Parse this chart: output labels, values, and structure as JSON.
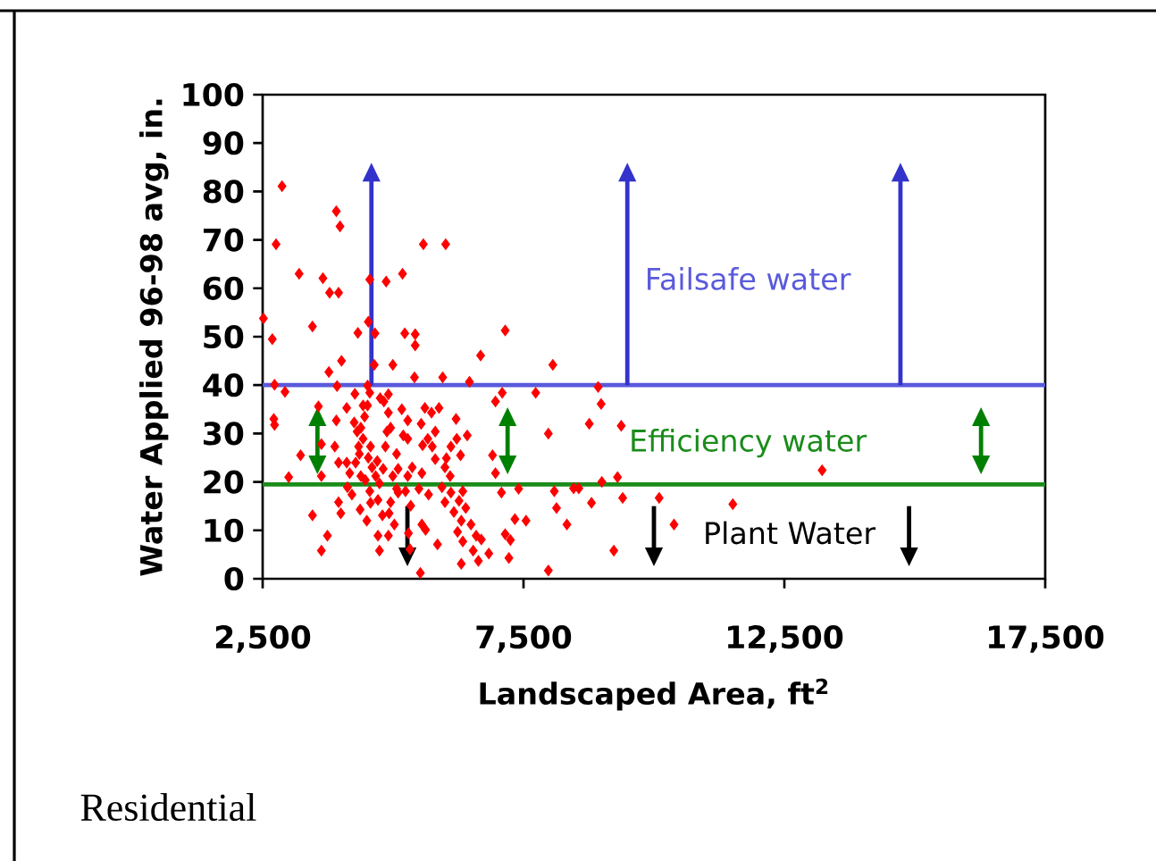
{
  "chart_data": {
    "type": "scatter",
    "xlabel": "Landscaped Area, ft$^{2}$",
    "ylabel": "Water Applied 96-98 avg, in.",
    "xlim": [
      2500,
      17500
    ],
    "ylim": [
      0,
      100
    ],
    "xticks": [
      {
        "value": 2500,
        "label": "2,500"
      },
      {
        "value": 7500,
        "label": "7,500"
      },
      {
        "value": 12500,
        "label": "12,500"
      },
      {
        "value": 17500,
        "label": "17,500"
      }
    ],
    "yticks": [
      0,
      10,
      20,
      30,
      40,
      50,
      60,
      70,
      80,
      90,
      100
    ],
    "marker": "diamond",
    "ref_lines": [
      {
        "axis": "y",
        "value": 40,
        "label": "Failsafe water",
        "color": "#5a5adc"
      },
      {
        "axis": "y",
        "value": 19.5,
        "label": "Efficiency water",
        "color": "#1a8c1a"
      }
    ],
    "annotations": [
      "Plant Water",
      "Residential"
    ],
    "series": [
      {
        "color": "#ff0000",
        "x": [
          2871,
          2757,
          2514,
          2685,
          2728,
          2928,
          2714,
          2728,
          2999,
          3199,
          3455,
          3655,
          3783,
          3955,
          3912,
          3983,
          3769,
          4012,
          3926,
          3569,
          3626,
          3227,
          3626,
          3455,
          3741,
          3626,
          3955,
          3912,
          3955,
          3998,
          4111,
          4254,
          4311,
          4339,
          4282,
          4382,
          4169,
          4211,
          4368,
          4325,
          4268,
          4425,
          4511,
          4525,
          4553,
          4653,
          4639,
          4867,
          4995,
          5181,
          5224,
          5424,
          5424,
          5410,
          5580,
          6008,
          5951,
          6464,
          6678,
          7149,
          7092,
          7734,
          8062,
          7976,
          8988,
          8931,
          9373,
          8760,
          9302,
          9002,
          9401,
          10100,
          10385,
          11512,
          13224,
          9231,
          8803,
          8460,
          8560,
          8090,
          8133,
          8332,
          7976,
          7548,
          7406,
          7335,
          7149,
          7249,
          7220,
          7077,
          6906,
          6963,
          6963,
          6835,
          6635,
          6535,
          6592,
          6692,
          6493,
          6393,
          6336,
          6293,
          6421,
          6207,
          6221,
          6108,
          6022,
          5994,
          6094,
          5937,
          6108,
          6264,
          6165,
          6307,
          6236,
          6336,
          6307,
          5994,
          5851,
          5808,
          5880,
          5737,
          5609,
          5538,
          5666,
          5566,
          5751,
          5808,
          5552,
          5495,
          5680,
          5552,
          5623,
          5523,
          5324,
          5295,
          5338,
          5238,
          5281,
          5367,
          5281,
          5195,
          5281,
          5167,
          5067,
          5096,
          4995,
          4953,
          4924,
          5024,
          4910,
          4739,
          4710,
          4796,
          4710,
          4739,
          4810,
          4696,
          4853,
          4882,
          4953,
          4910,
          4824,
          4910,
          4753,
          4553,
          4511,
          4454,
          4568,
          4525,
          4596,
          4667,
          4553,
          4382,
          4425,
          4354,
          4568,
          4496,
          5067,
          5096,
          3883,
          4125,
          4111,
          4468
        ],
        "values": [
          81.1,
          69.1,
          53.8,
          49.5,
          40.1,
          38.6,
          33.0,
          31.8,
          21.0,
          63.0,
          52.1,
          62.1,
          59.1,
          59.1,
          75.9,
          72.8,
          42.7,
          45.0,
          39.8,
          35.6,
          27.8,
          25.5,
          21.2,
          13.1,
          8.9,
          5.8,
          24.0,
          32.7,
          15.8,
          13.5,
          35.3,
          32.3,
          30.4,
          27.3,
          24.0,
          21.2,
          21.8,
          17.4,
          14.3,
          50.8,
          38.2,
          35.8,
          39.9,
          53.1,
          61.8,
          50.7,
          44.2,
          61.4,
          44.2,
          63.0,
          50.7,
          50.5,
          48.2,
          41.6,
          69.1,
          69.1,
          41.6,
          40.7,
          46.1,
          51.3,
          38.4,
          38.4,
          44.2,
          30.0,
          36.1,
          39.6,
          31.6,
          32.0,
          21.0,
          20.0,
          16.7,
          16.7,
          11.2,
          15.4,
          22.4,
          5.8,
          15.7,
          18.7,
          18.7,
          18.1,
          14.6,
          11.2,
          1.7,
          12.0,
          18.6,
          12.3,
          9.2,
          8.0,
          4.3,
          17.8,
          25.5,
          21.8,
          36.6,
          5.2,
          3.7,
          5.8,
          8.9,
          8.1,
          11.2,
          14.6,
          18.1,
          25.5,
          29.6,
          33.0,
          28.9,
          27.3,
          24.9,
          23.0,
          21.2,
          18.9,
          17.8,
          16.1,
          13.8,
          12.0,
          9.7,
          7.7,
          3.1,
          15.8,
          7.1,
          30.4,
          35.3,
          34.3,
          35.3,
          32.0,
          28.9,
          27.6,
          27.3,
          24.7,
          21.8,
          18.6,
          17.4,
          11.2,
          10.1,
          1.2,
          6.1,
          9.4,
          15.1,
          18.1,
          21.2,
          23.0,
          28.9,
          29.6,
          32.7,
          35.0,
          18.6,
          17.8,
          21.2,
          15.8,
          13.5,
          11.2,
          8.9,
          5.8,
          8.9,
          13.1,
          16.3,
          19.7,
          22.7,
          24.3,
          27.3,
          30.4,
          31.2,
          34.3,
          36.6,
          38.1,
          37.3,
          38.4,
          35.8,
          33.5,
          27.3,
          25.0,
          23.0,
          21.2,
          18.1,
          31.2,
          28.9,
          25.8,
          15.7,
          12.0,
          25.8,
          22.7,
          27.3,
          18.9,
          24.0,
          20.4
        ]
      }
    ]
  }
}
